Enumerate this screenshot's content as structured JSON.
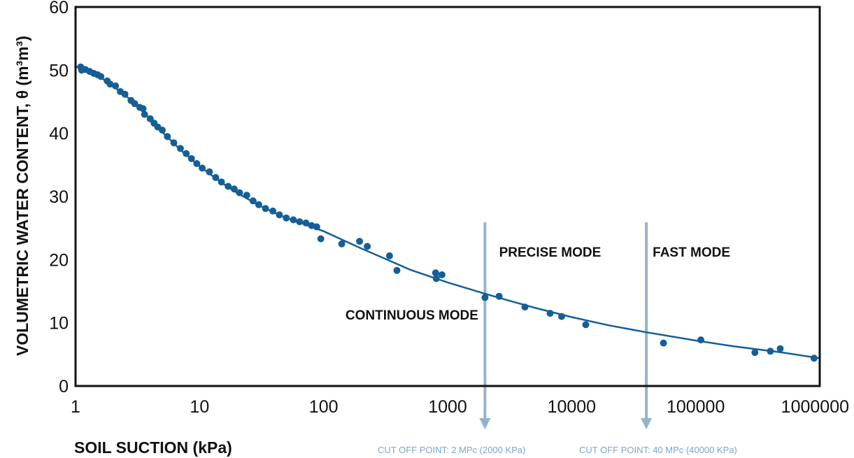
{
  "chart_data": {
    "type": "scatter",
    "xlabel": "SOIL SUCTION (kPa)",
    "ylabel": "VOLUMETRIC WATER CONTENT, θ (m³m³)",
    "x_scale": "log",
    "xlim": [
      1,
      1000000
    ],
    "ylim": [
      0,
      60
    ],
    "x_ticks": [
      "1",
      "10",
      "100",
      "1000",
      "10000",
      "100000",
      "1000000"
    ],
    "y_ticks": [
      "0",
      "10",
      "20",
      "30",
      "40",
      "50",
      "60"
    ],
    "grid": false,
    "colors": {
      "series": "#155f96",
      "cutoff": "#93b3cc"
    },
    "series": [
      {
        "type": "scatter",
        "points": [
          [
            1.1,
            50.5
          ],
          [
            1.12,
            50.0
          ],
          [
            1.2,
            50.1
          ],
          [
            1.3,
            49.8
          ],
          [
            1.4,
            49.5
          ],
          [
            1.5,
            49.3
          ],
          [
            1.6,
            49.0
          ],
          [
            1.8,
            48.3
          ],
          [
            1.9,
            47.8
          ],
          [
            2.1,
            47.5
          ],
          [
            2.3,
            46.6
          ],
          [
            2.5,
            46.2
          ],
          [
            2.8,
            45.2
          ],
          [
            3.0,
            44.7
          ],
          [
            3.3,
            44.1
          ],
          [
            3.5,
            43.9
          ],
          [
            3.6,
            43.0
          ],
          [
            4.0,
            42.3
          ],
          [
            4.3,
            41.6
          ],
          [
            4.6,
            41.0
          ],
          [
            5.0,
            40.5
          ],
          [
            5.5,
            39.5
          ],
          [
            6.2,
            38.5
          ],
          [
            7.0,
            37.6
          ],
          [
            7.8,
            36.8
          ],
          [
            8.6,
            36.0
          ],
          [
            9.5,
            35.2
          ],
          [
            10.5,
            34.5
          ],
          [
            12,
            33.9
          ],
          [
            13.5,
            33.0
          ],
          [
            15,
            32.3
          ],
          [
            17,
            31.6
          ],
          [
            19,
            31.2
          ],
          [
            21,
            30.6
          ],
          [
            24,
            30.2
          ],
          [
            27,
            29.3
          ],
          [
            30,
            28.7
          ],
          [
            34,
            28.1
          ],
          [
            39,
            27.7
          ],
          [
            44,
            27.1
          ],
          [
            50,
            26.6
          ],
          [
            57,
            26.3
          ],
          [
            64,
            26.0
          ],
          [
            72,
            25.8
          ],
          [
            80,
            25.4
          ],
          [
            88,
            25.2
          ],
          [
            95,
            23.3
          ],
          [
            140,
            22.5
          ],
          [
            195,
            22.9
          ],
          [
            225,
            22.1
          ],
          [
            340,
            20.6
          ],
          [
            390,
            18.3
          ],
          [
            800,
            17.9
          ],
          [
            810,
            17.0
          ],
          [
            900,
            17.6
          ],
          [
            2000,
            14.0
          ],
          [
            2600,
            14.2
          ],
          [
            4200,
            12.5
          ],
          [
            6700,
            11.5
          ],
          [
            8300,
            11.0
          ],
          [
            13000,
            9.7
          ],
          [
            55000,
            6.8
          ],
          [
            110000,
            7.3
          ],
          [
            300000,
            5.3
          ],
          [
            400000,
            5.5
          ],
          [
            480000,
            5.9
          ],
          [
            900000,
            4.4
          ]
        ]
      },
      {
        "type": "line",
        "points": [
          [
            1,
            50.6
          ],
          [
            1.5,
            49.2
          ],
          [
            2,
            47.5
          ],
          [
            3,
            44.8
          ],
          [
            5,
            40.2
          ],
          [
            7,
            37.4
          ],
          [
            10,
            34.8
          ],
          [
            15,
            32.2
          ],
          [
            20,
            30.6
          ],
          [
            30,
            28.6
          ],
          [
            50,
            26.6
          ],
          [
            70,
            25.6
          ],
          [
            100,
            24.5
          ],
          [
            200,
            21.8
          ],
          [
            300,
            20.3
          ],
          [
            500,
            18.4
          ],
          [
            1000,
            16.4
          ],
          [
            2000,
            14.6
          ],
          [
            3000,
            13.6
          ],
          [
            5000,
            12.4
          ],
          [
            10000,
            10.9
          ],
          [
            20000,
            9.6
          ],
          [
            40000,
            8.5
          ],
          [
            100000,
            7.2
          ],
          [
            200000,
            6.3
          ],
          [
            500000,
            5.3
          ],
          [
            1000000,
            4.4
          ]
        ]
      }
    ],
    "annotations": [
      {
        "text": "CONTINUOUS MODE",
        "x": 150,
        "y": 10.5
      },
      {
        "text": "PRECISE MODE",
        "x": 2600,
        "y": 20.5
      },
      {
        "text": "FAST MODE",
        "x": 45000,
        "y": 20.5
      }
    ],
    "cutoffs": [
      {
        "x": 2000,
        "label": "CUT OFF POINT: 2 MPc (2000 KPa)"
      },
      {
        "x": 40000,
        "label": "CUT OFF POINT: 40 MPc (40000 KPa)"
      }
    ]
  }
}
